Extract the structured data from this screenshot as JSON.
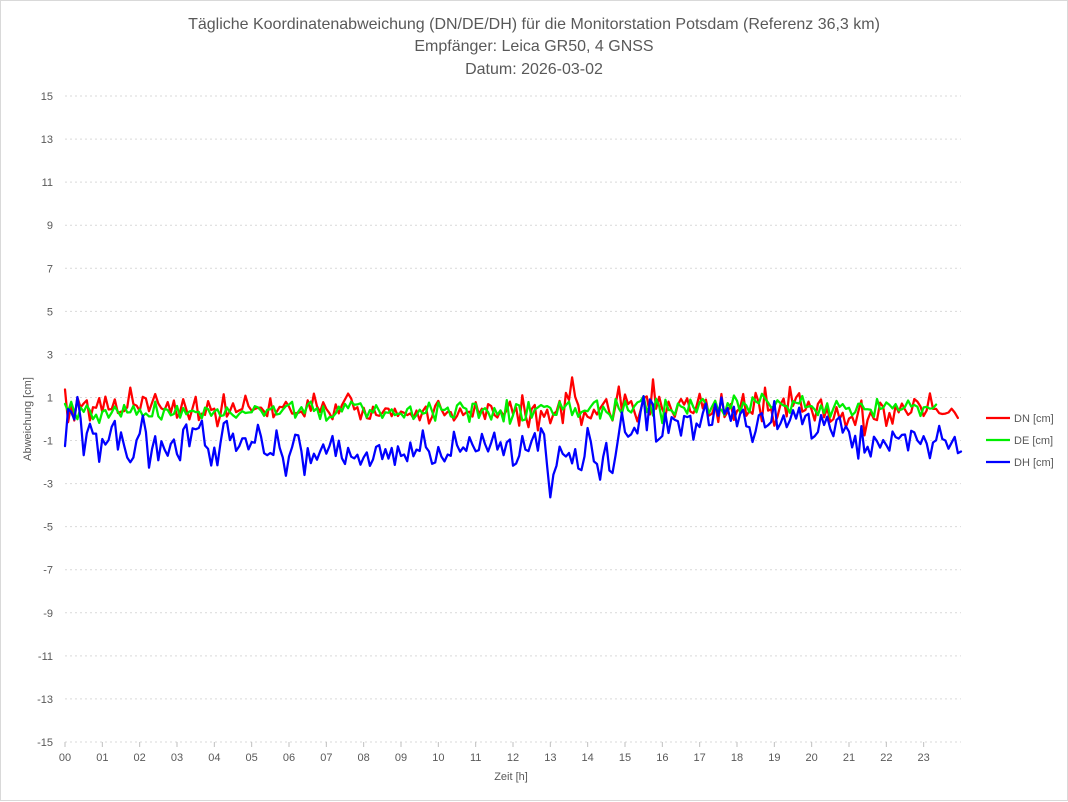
{
  "chart_data": {
    "type": "line",
    "title_lines": [
      "Tägliche Koordinatenabweichung (DN/DE/DH) für die Monitorstation Potsdam (Referenz 36,3 km)",
      "Empfänger: Leica GR50, 4 GNSS",
      "Datum: 2026-03-02"
    ],
    "xlabel": "Zeit [h]",
    "ylabel": "Abweichung [cm]",
    "xlim": [
      0,
      24
    ],
    "ylim": [
      -15,
      15
    ],
    "y_ticks": [
      15,
      13,
      11,
      9,
      7,
      5,
      3,
      1,
      -1,
      -3,
      -5,
      -7,
      -9,
      -11,
      -13,
      -15
    ],
    "x_tick_labels": [
      "00",
      "01",
      "02",
      "03",
      "04",
      "05",
      "06",
      "07",
      "08",
      "09",
      "10",
      "11",
      "12",
      "13",
      "14",
      "15",
      "16",
      "17",
      "18",
      "19",
      "20",
      "21",
      "22",
      "23"
    ],
    "grid": true,
    "legend_position": "right",
    "x_start_hours": 0,
    "x_step_hours": 0.08333,
    "series": [
      {
        "name": "DN [cm]",
        "color": "#ff0000",
        "values": [
          1.37,
          -0.15,
          0.68,
          -0.07,
          1.0,
          0.54,
          0.72,
          0.87,
          -0.07,
          0.55,
          0.52,
          0.97,
          0.32,
          1.04,
          0.44,
          0.46,
          0.91,
          0.28,
          0.34,
          0.36,
          0.54,
          1.46,
          0.69,
          0.62,
          0.37,
          1.03,
          0.95,
          0.36,
          0.76,
          1.16,
          0.72,
          0.49,
          0.42,
          0.79,
          0.29,
          0.86,
          0.06,
          0.34,
          0.92,
          0.44,
          -0.02,
          0.51,
          1.03,
          -0.05,
          0.25,
          0.19,
          0.83,
          0.42,
          0.48,
          -0.34,
          0.22,
          1.15,
          0.11,
          0.36,
          0.73,
          0.32,
          0.4,
          0.47,
          1.08,
          0.6,
          0.38,
          0.47,
          0.52,
          0.53,
          0.35,
          0.13,
          0.96,
          0.08,
          0.32,
          0.56,
          0.55,
          0.8,
          0.57,
          0.25,
          0.27,
          0.29,
          0.35,
          0.12,
          0.87,
          0.38,
          1.18,
          0.59,
          0.33,
          0.78,
          0.47,
          0.27,
          -0.01,
          0.68,
          0.26,
          0.64,
          0.91,
          1.18,
          0.95,
          0.44,
          0.55,
          -0.02,
          0.52,
          0.04,
          0.01,
          0.57,
          0.19,
          0.15,
          0.28,
          0.49,
          0.48,
          0.13,
          0.48,
          0.14,
          0.35,
          0.29,
          0.18,
          0.26,
          0.04,
          0.39,
          -0.06,
          0.37,
          0.58,
          -0.21,
          0.1,
          0.61,
          0.84,
          0.44,
          0.17,
          0.34,
          0.32,
          -0.07,
          0.14,
          0.49,
          0.18,
          0.31,
          0.34,
          0.11,
          0.78,
          0.22,
          0.48,
          0.0,
          0.69,
          0.6,
          0.19,
          0.07,
          0.39,
          0.16,
          0.42,
          0.81,
          0.24,
          0.54,
          -0.31,
          1.1,
          0.2,
          -0.38,
          0.46,
          0.65,
          -0.53,
          0.37,
          0.1,
          0.43,
          -0.2,
          0.23,
          0.35,
          0.84,
          -0.19,
          1.21,
          0.88,
          1.93,
          1.02,
          0.64,
          -0.28,
          0.34,
          0.1,
          0.03,
          0.43,
          0.21,
          0.49,
          0.71,
          0.92,
          0.3,
          -0.07,
          0.66,
          1.51,
          0.38,
          1.14,
          0.69,
          0.83,
          0.35,
          -0.11,
          0.39,
          0.96,
          1.05,
          0.21,
          1.84,
          0.48,
          1.03,
          0.45,
          0.15,
          0.81,
          0.4,
          0.1,
          0.67,
          0.93,
          0.67,
          0.96,
          0.35,
          0.27,
          0.59,
          1.17,
          0.49,
          0.9,
          0.16,
          0.25,
          0.69,
          -0.14,
          1.16,
          0.09,
          0.33,
          0.69,
          -0.04,
          0.37,
          0.5,
          1.16,
          0.15,
          0.37,
          0.24,
          1.21,
          0.75,
          -0.1,
          1.46,
          0.39,
          0.46,
          -0.31,
          0.1,
          0.67,
          0.95,
          0.12,
          1.49,
          0.61,
          1.0,
          1.2,
          0.34,
          0.42,
          0.81,
          0.43,
          -0.07,
          0.7,
          0.91,
          0.08,
          0.51,
          -0.13,
          -0.01,
          0.55,
          0.01,
          0.29,
          -0.38,
          0.02,
          0.11,
          -0.28,
          0.35,
          0.86,
          -0.76,
          -0.04,
          0.32,
          0.0,
          -0.05,
          0.76,
          0.56,
          -0.32,
          0.28,
          -0.22,
          0.62,
          0.31,
          0.72,
          0.43,
          0.19,
          0.31,
          0.93,
          0.81,
          0.58,
          0.14,
          0.4,
          1.19,
          0.47,
          0.47,
          0.27,
          0.23,
          0.25,
          0.3,
          0.48,
          0.3,
          0.05
        ]
      },
      {
        "name": "DE [cm]",
        "color": "#00ee00",
        "values": [
          0.7,
          0.35,
          0.8,
          0.31,
          -0.01,
          0.54,
          0.33,
          0.63,
          0.39,
          -0.01,
          0.2,
          -0.18,
          0.34,
          0.42,
          0.06,
          0.3,
          0.58,
          0.34,
          0.11,
          0.65,
          0.3,
          0.31,
          0.61,
          0.2,
          0.45,
          0.14,
          0.26,
          0.12,
          0.12,
          0.81,
          0.13,
          -0.03,
          0.48,
          0.42,
          0.17,
          0.23,
          0.61,
          0.06,
          0.51,
          0.22,
          0.35,
          0.39,
          0.32,
          0.33,
          0.04,
          0.53,
          0.46,
          0.15,
          0.35,
          0.45,
          0.14,
          0.17,
          0.54,
          0.31,
          0.17,
          0.06,
          0.24,
          0.36,
          0.28,
          0.3,
          0.31,
          0.6,
          0.54,
          0.39,
          0.15,
          0.43,
          0.45,
          0.59,
          0.21,
          0.24,
          0.43,
          0.6,
          0.67,
          0.8,
          0.06,
          0.34,
          0.55,
          0.27,
          0.68,
          0.81,
          0.37,
          0.5,
          0.0,
          0.59,
          -0.08,
          0.09,
          0.09,
          0.26,
          0.57,
          0.35,
          0.7,
          0.5,
          0.81,
          0.66,
          0.68,
          0.73,
          0.42,
          0.07,
          0.42,
          0.3,
          0.64,
          0.37,
          0.05,
          0.31,
          0.29,
          0.45,
          0.18,
          0.24,
          0.25,
          0.07,
          0.46,
          0.58,
          0.0,
          0.18,
          0.43,
          0.25,
          0.29,
          0.76,
          0.36,
          -0.08,
          0.76,
          0.43,
          0.42,
          0.53,
          0.12,
          0.06,
          0.63,
          0.77,
          0.54,
          0.47,
          -0.13,
          0.71,
          0.71,
          0.05,
          0.4,
          0.5,
          0.32,
          -0.03,
          0.51,
          0.2,
          0.4,
          -0.11,
          0.88,
          -0.22,
          0.17,
          0.69,
          0.63,
          -0.07,
          -0.02,
          0.79,
          0.06,
          0.44,
          0.54,
          0.65,
          0.56,
          0.6,
          0.52,
          0.2,
          0.19,
          0.8,
          0.44,
          0.64,
          0.81,
          0.18,
          0.5,
          0.1,
          0.32,
          0.39,
          0.36,
          0.58,
          0.77,
          0.86,
          0.02,
          0.57,
          0.33,
          0.22,
          -0.05,
          0.93,
          0.49,
          0.25,
          0.83,
          0.41,
          0.3,
          0.59,
          0.77,
          0.83,
          1.06,
          0.32,
          0.68,
          0.16,
          0.94,
          0.61,
          -0.19,
          0.89,
          0.42,
          0.4,
          0.2,
          0.72,
          0.58,
          0.52,
          0.25,
          0.9,
          0.55,
          0.31,
          0.78,
          0.93,
          0.7,
          0.28,
          0.58,
          0.85,
          0.38,
          0.43,
          0.19,
          0.74,
          0.5,
          1.09,
          0.85,
          0.31,
          0.77,
          0.63,
          0.31,
          1.01,
          0.82,
          0.72,
          1.17,
          0.96,
          0.76,
          0.53,
          0.59,
          0.87,
          0.73,
          0.62,
          0.6,
          0.29,
          0.83,
          0.75,
          0.72,
          1.07,
          0.54,
          0.58,
          0.6,
          0.44,
          0.18,
          0.63,
          0.28,
          0.73,
          0.1,
          0.49,
          0.84,
          0.56,
          0.69,
          0.47,
          0.52,
          0.17,
          0.32,
          0.71,
          0.71,
          0.45,
          0.45,
          0.43,
          0.1,
          0.93,
          0.46,
          0.52,
          0.77,
          0.66,
          0.49,
          0.69,
          0.4,
          0.45,
          0.56,
          0.86,
          0.58,
          0.65,
          0.57,
          0.14,
          0.54,
          0.56,
          0.48,
          0.5,
          0.67
        ]
      },
      {
        "name": "DH [cm]",
        "color": "#0000ff",
        "values": [
          -1.26,
          0.47,
          0.33,
          -0.02,
          1.02,
          0.03,
          -1.68,
          -0.66,
          -0.22,
          -0.68,
          -0.68,
          -1.99,
          -0.93,
          -1.19,
          -0.98,
          -0.36,
          -0.09,
          -1.42,
          -0.62,
          -1.23,
          -1.79,
          -2.01,
          -1.79,
          -0.98,
          -0.68,
          0.16,
          -0.6,
          -2.26,
          -1.38,
          -0.8,
          -1.92,
          -1.03,
          -1.42,
          -1.71,
          -1.15,
          -0.95,
          -1.63,
          -1.92,
          -0.49,
          -0.25,
          -1.27,
          -0.43,
          -0.48,
          -0.42,
          -0.07,
          -1.23,
          -1.39,
          -2.16,
          -1.33,
          -2.15,
          -1.11,
          -0.2,
          -0.09,
          -0.98,
          -0.68,
          -1.48,
          -1.27,
          -0.9,
          -0.89,
          -1.41,
          -1.07,
          -1.1,
          -0.27,
          -0.81,
          -1.59,
          -1.68,
          -1.58,
          -1.67,
          -0.53,
          -1.34,
          -1.79,
          -2.64,
          -1.74,
          -1.31,
          -0.73,
          -0.76,
          -1.49,
          -2.6,
          -1.35,
          -2.05,
          -1.61,
          -1.89,
          -1.51,
          -1.18,
          -1.61,
          -1.27,
          -0.79,
          -1.72,
          -1.01,
          -1.82,
          -2.09,
          -1.34,
          -1.75,
          -1.83,
          -1.66,
          -2.12,
          -1.78,
          -1.55,
          -2.18,
          -1.88,
          -1.29,
          -1.21,
          -1.86,
          -1.4,
          -1.84,
          -1.34,
          -2.13,
          -1.27,
          -1.72,
          -1.65,
          -1.96,
          -1.09,
          -1.73,
          -1.42,
          -1.48,
          -0.53,
          -1.31,
          -1.51,
          -2.08,
          -2.02,
          -1.3,
          -1.74,
          -1.97,
          -1.65,
          -1.71,
          -0.59,
          -1.21,
          -1.52,
          -1.32,
          -1.48,
          -0.84,
          -1.2,
          -1.5,
          -1.45,
          -0.69,
          -1.16,
          -1.51,
          -1.1,
          -0.63,
          -1.42,
          -1.08,
          -1.68,
          -1.08,
          -0.95,
          -2.17,
          -2.07,
          -1.71,
          -0.79,
          -1.42,
          -1.49,
          -1.02,
          -0.66,
          -1.47,
          -0.43,
          -0.71,
          -2.22,
          -3.64,
          -2.58,
          -2.17,
          -1.28,
          -1.62,
          -1.74,
          -1.58,
          -2.06,
          -1.4,
          -2.3,
          -2.38,
          -1.74,
          -0.42,
          -1.05,
          -1.97,
          -2.09,
          -2.82,
          -1.75,
          -1.11,
          -2.39,
          -2.51,
          -1.68,
          -0.7,
          0.3,
          -0.61,
          -0.82,
          -0.71,
          -0.41,
          -0.67,
          0.31,
          1.06,
          -0.52,
          0.91,
          0.68,
          -1.05,
          -0.93,
          -0.79,
          0.26,
          -0.65,
          0.09,
          -0.04,
          -0.1,
          -0.77,
          0.14,
          0.09,
          0.15,
          -0.96,
          -0.21,
          -0.37,
          0.27,
          0.72,
          -0.29,
          -0.27,
          0.69,
          0.15,
          1.0,
          0.24,
          0.51,
          -0.09,
          0.57,
          -0.34,
          0.23,
          0.43,
          -0.34,
          -0.38,
          -1.07,
          -0.57,
          0.17,
          0.27,
          -0.39,
          -0.29,
          -0.14,
          0.83,
          -0.47,
          -0.21,
          0.17,
          -0.38,
          -0.06,
          0.41,
          0.02,
          0.53,
          -0.24,
          0.15,
          0.24,
          -0.91,
          -0.8,
          -0.61,
          0.18,
          -0.28,
          0.11,
          -0.46,
          -0.8,
          -0.04,
          0.09,
          -0.63,
          -0.34,
          -0.59,
          -1.32,
          -0.78,
          -1.84,
          -0.33,
          -1.56,
          -1.29,
          -1.74,
          -0.82,
          -1.03,
          -1.33,
          -0.98,
          -1.21,
          -1.47,
          -0.58,
          -0.84,
          -0.91,
          -0.74,
          -0.72,
          -1.46,
          -0.55,
          -0.62,
          -1.0,
          -1.16,
          -0.8,
          -1.14,
          -1.82,
          -1.09,
          -0.99,
          -0.32,
          -0.93,
          -1.0,
          -1.38,
          -1.1,
          -0.83,
          -1.59,
          -1.51
        ]
      }
    ]
  }
}
